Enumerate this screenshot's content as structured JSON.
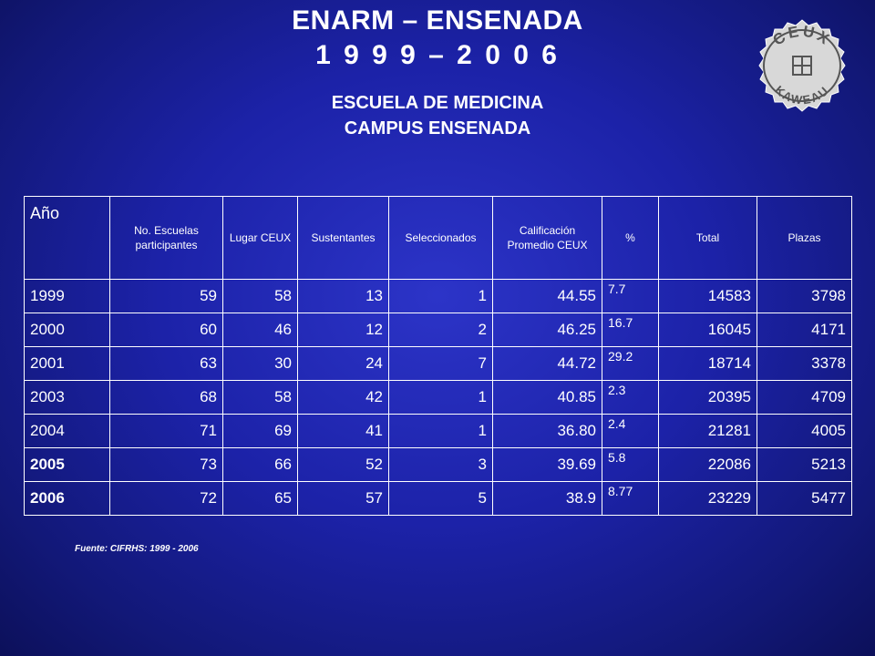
{
  "title": "ENARM – ENSENADA",
  "years_title": "1 9 9 9 – 2 0 0 6",
  "school": "ESCUELA DE MEDICINA",
  "campus": "CAMPUS  ENSENADA",
  "logo": {
    "text_top": "CEUX",
    "text_bottom": "KAWEAU",
    "icon": "ceux-seal-icon"
  },
  "table": {
    "headers": [
      "Año",
      "No. Escuelas participantes",
      "Lugar CEUX",
      "Sustentantes",
      "Seleccionados",
      "Calificación Promedio CEUX",
      "%",
      "Total",
      "Plazas"
    ],
    "rows": [
      [
        "1999",
        "59",
        "58",
        "13",
        "1",
        "44.55",
        "7.7",
        "14583",
        "3798"
      ],
      [
        "2000",
        "60",
        "46",
        "12",
        "2",
        "46.25",
        "16.7",
        "16045",
        "4171"
      ],
      [
        "2001",
        "63",
        "30",
        "24",
        "7",
        "44.72",
        "29.2",
        "18714",
        "3378"
      ],
      [
        "2003",
        "68",
        "58",
        "42",
        "1",
        "40.85",
        "2.3",
        "20395",
        "4709"
      ],
      [
        "2004",
        "71",
        "69",
        "41",
        "1",
        "36.80",
        "2.4",
        "21281",
        "4005"
      ],
      [
        "2005",
        "73",
        "66",
        "52",
        "3",
        "39.69",
        "5.8",
        "22086",
        "5213"
      ],
      [
        "2006",
        "72",
        "65",
        "57",
        "5",
        "38.9",
        "8.77",
        "23229",
        "5477"
      ]
    ]
  },
  "source": "Fuente: CIFRHS: 1999 - 2006"
}
